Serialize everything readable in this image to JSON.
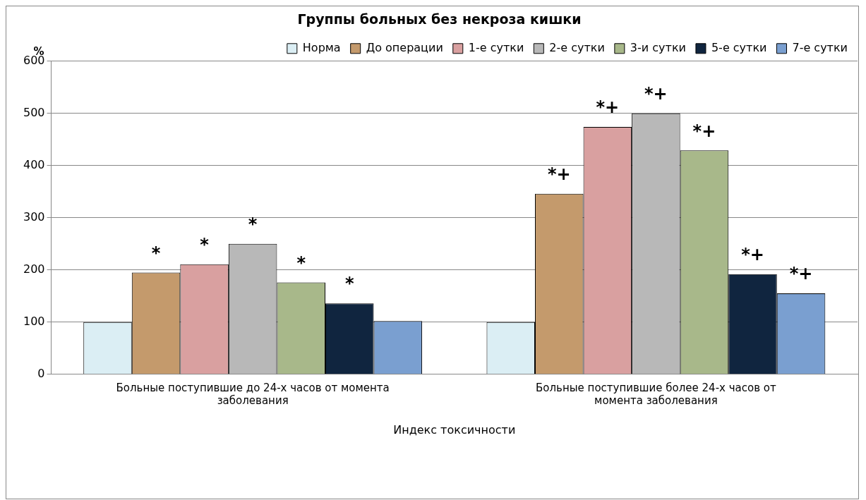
{
  "chart_data": {
    "type": "bar",
    "title": "Группы больных без некроза кишки",
    "ylabel": "%",
    "xlabel": "Индекс токсичности",
    "categories": [
      "Больные поступившие до 24-х часов от момента заболевания",
      "Больные поступившие более 24-х часов от момента заболевания"
    ],
    "series": [
      {
        "name": "Норма",
        "color": "#dbeef4",
        "values": [
          100,
          100
        ]
      },
      {
        "name": "До операции",
        "color": "#c49a6c",
        "values": [
          195,
          346
        ],
        "value_labels": [
          "*",
          "*+"
        ]
      },
      {
        "name": "1-е сутки",
        "color": "#d9a0a0",
        "values": [
          211,
          474
        ],
        "value_labels": [
          "*",
          "*+"
        ]
      },
      {
        "name": "2-е сутки",
        "color": "#b8b8b8",
        "values": [
          250,
          500
        ],
        "value_labels": [
          "*",
          "*+"
        ]
      },
      {
        "name": "3-и сутки",
        "color": "#a8b88a",
        "values": [
          176,
          429
        ],
        "value_labels": [
          "*",
          "*+"
        ]
      },
      {
        "name": "5-е сутки",
        "color": "#10253f",
        "values": [
          136,
          192
        ],
        "value_labels": [
          "*",
          "*+"
        ]
      },
      {
        "name": "7-е сутки",
        "color": "#7a9fd0",
        "values": [
          102,
          155
        ],
        "value_labels": [
          null,
          "*+"
        ]
      }
    ],
    "ylim": [
      0,
      600
    ],
    "yticks": [
      0,
      100,
      200,
      300,
      400,
      500,
      600
    ],
    "grid": "y",
    "legend": "top"
  }
}
